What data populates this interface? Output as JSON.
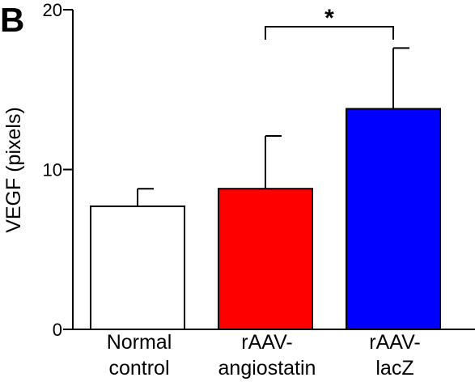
{
  "panel_label": "B",
  "chart_data": {
    "type": "bar",
    "ylabel": "VEGF (pixels)",
    "xlabel": "",
    "ylim": [
      0,
      20
    ],
    "y_ticks": [
      0,
      10,
      20
    ],
    "y_tick_labels": [
      "0",
      "10",
      "20"
    ],
    "grid": false,
    "legend": "none",
    "categories": [
      {
        "lines": [
          "Normal",
          "control"
        ],
        "value": 7.7,
        "error": 1.1,
        "color": "#ffffff"
      },
      {
        "lines": [
          "rAAV-",
          "angiostatin"
        ],
        "value": 8.8,
        "error": 3.3,
        "color": "#ff0000"
      },
      {
        "lines": [
          "rAAV-",
          "lacZ"
        ],
        "value": 13.8,
        "error": 3.8,
        "color": "#0000ff"
      }
    ],
    "significance": {
      "from": 1,
      "to": 2,
      "label": "*"
    }
  }
}
